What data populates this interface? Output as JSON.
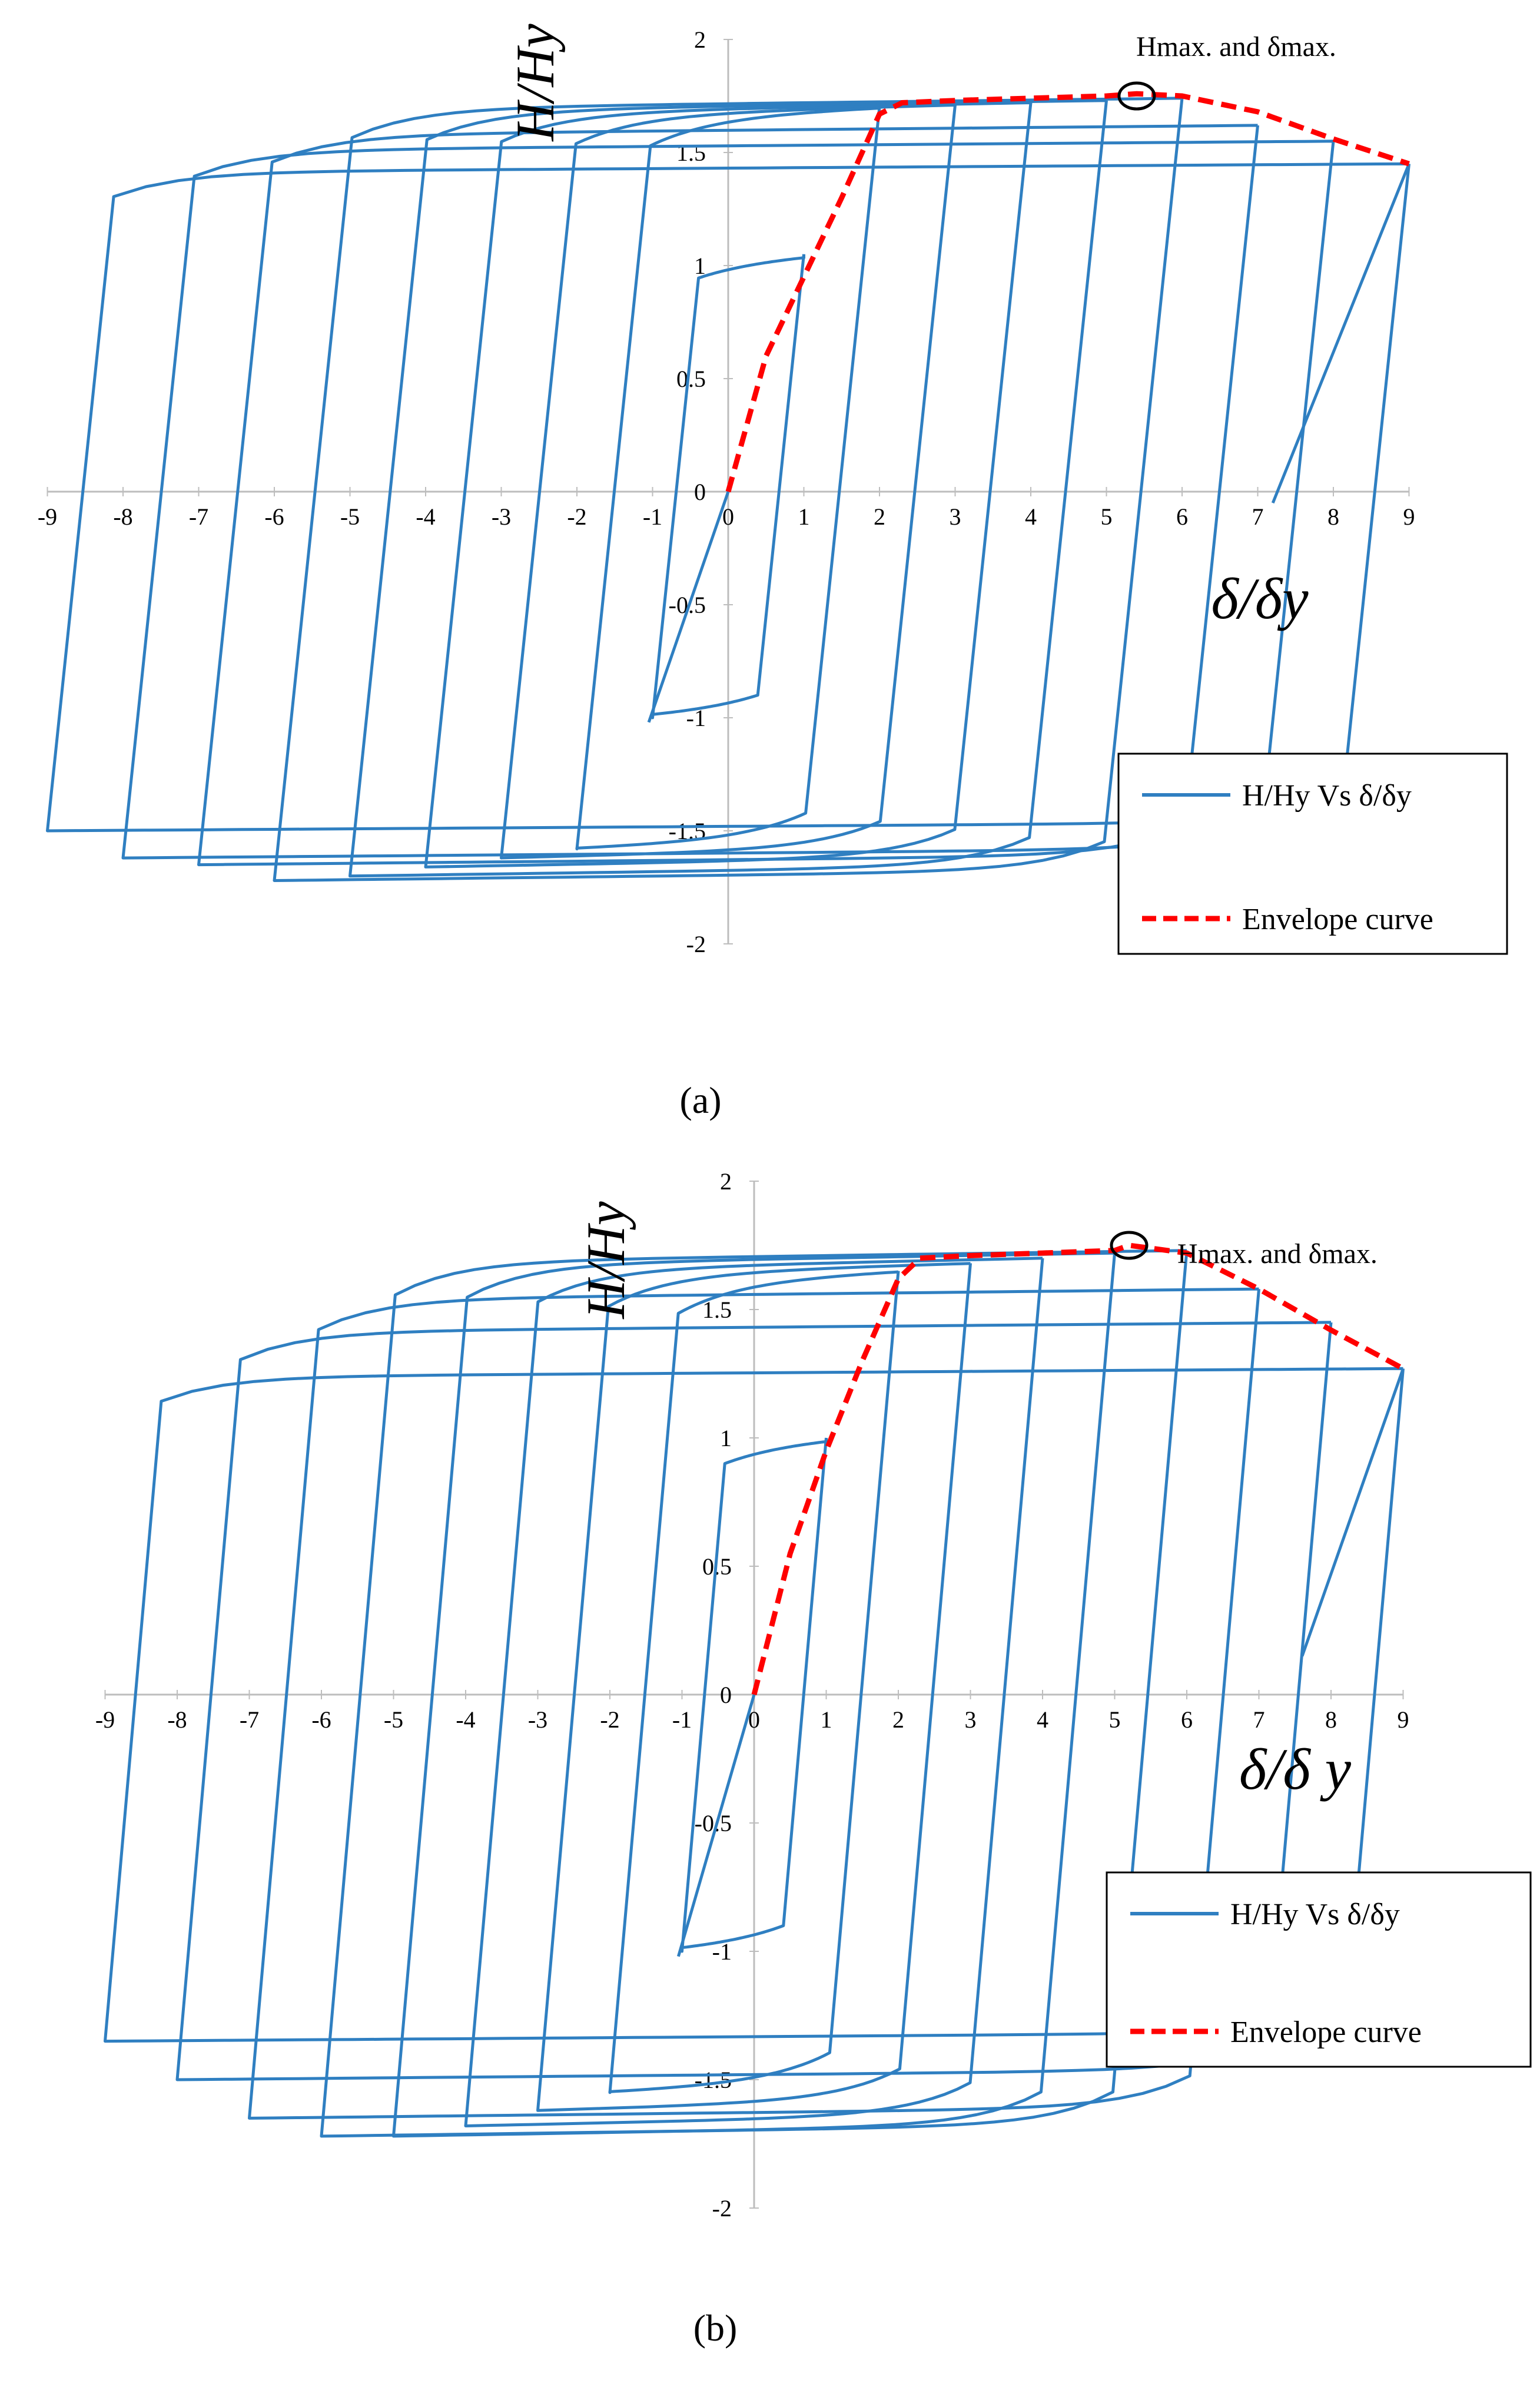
{
  "chart_data": [
    {
      "type": "line",
      "panel_label": "(a)",
      "xlim": [
        -9,
        9
      ],
      "ylim": [
        -2,
        2
      ],
      "x_ticks": [
        -9,
        -8,
        -7,
        -6,
        -5,
        -4,
        -3,
        -2,
        -1,
        0,
        1,
        2,
        3,
        4,
        5,
        6,
        7,
        8,
        9
      ],
      "y_ticks": [
        -2,
        -1.5,
        -1,
        -0.5,
        0,
        0.5,
        1,
        1.5,
        2
      ],
      "xlabel": "δ/δy",
      "ylabel": "H/Hy",
      "grid": false,
      "legend_position": "bottom-right",
      "legend": [
        {
          "label": "H/Hy  Vs δ/δy",
          "color": "#2f7fc1",
          "style": "solid"
        },
        {
          "label": "Envelope curve",
          "color": "#ff0000",
          "style": "dashed"
        }
      ],
      "annotation": {
        "text": "Hmax. and δmax.",
        "x": 5.4,
        "y": 1.75
      },
      "series": [
        {
          "name": "H/Hy  Vs δ/δy",
          "color": "#2f7fc1",
          "cycles": [
            {
              "dmax": 1,
              "hp": 1.05,
              "hn": -1.0
            },
            {
              "dmax": 2,
              "hp": 1.7,
              "hn": -1.58
            },
            {
              "dmax": 3,
              "hp": 1.71,
              "hn": -1.62
            },
            {
              "dmax": 4,
              "hp": 1.72,
              "hn": -1.66
            },
            {
              "dmax": 5,
              "hp": 1.73,
              "hn": -1.7
            },
            {
              "dmax": 6,
              "hp": 1.74,
              "hn": -1.72
            },
            {
              "dmax": 7,
              "hp": 1.62,
              "hn": -1.65
            },
            {
              "dmax": 8,
              "hp": 1.55,
              "hn": -1.62
            },
            {
              "dmax": 9,
              "hp": 1.45,
              "hn": -1.5
            }
          ],
          "final_branch": {
            "x": [
              9.0,
              7.2
            ],
            "y": [
              1.45,
              -0.05
            ]
          }
        },
        {
          "name": "Envelope curve",
          "color": "#ff0000",
          "x": [
            0,
            0.5,
            1.0,
            1.5,
            2.0,
            2.3,
            3.0,
            4.0,
            5.0,
            5.4,
            6.0,
            7.0,
            8.0,
            9.0
          ],
          "y": [
            0,
            0.6,
            0.95,
            1.3,
            1.67,
            1.72,
            1.73,
            1.74,
            1.75,
            1.76,
            1.75,
            1.68,
            1.56,
            1.45
          ]
        }
      ]
    },
    {
      "type": "line",
      "panel_label": "(b)",
      "xlim": [
        -9,
        9
      ],
      "ylim": [
        -2,
        2
      ],
      "x_ticks": [
        -9,
        -8,
        -7,
        -6,
        -5,
        -4,
        -3,
        -2,
        -1,
        0,
        1,
        2,
        3,
        4,
        5,
        6,
        7,
        8,
        9
      ],
      "y_ticks": [
        -2,
        -1.5,
        -1,
        -0.5,
        0,
        0.5,
        1,
        1.5,
        2
      ],
      "xlabel": "δ/δ y",
      "ylabel": "H/Hy",
      "grid": false,
      "legend_position": "bottom-right",
      "legend": [
        {
          "label": "H/Hy  Vs δ/δy",
          "color": "#2f7fc1",
          "style": "solid"
        },
        {
          "label": "Envelope curve",
          "color": "#ff0000",
          "style": "dashed"
        }
      ],
      "annotation": {
        "text": "Hmax. and δmax.",
        "x": 5.2,
        "y": 1.75
      },
      "series": [
        {
          "name": "H/Hy  Vs δ/δy",
          "color": "#2f7fc1",
          "cycles": [
            {
              "dmax": 1,
              "hp": 1.0,
              "hn": -1.0
            },
            {
              "dmax": 2,
              "hp": 1.65,
              "hn": -1.55
            },
            {
              "dmax": 3,
              "hp": 1.68,
              "hn": -1.62
            },
            {
              "dmax": 4,
              "hp": 1.7,
              "hn": -1.68
            },
            {
              "dmax": 5,
              "hp": 1.72,
              "hn": -1.72
            },
            {
              "dmax": 6,
              "hp": 1.73,
              "hn": -1.72
            },
            {
              "dmax": 7,
              "hp": 1.58,
              "hn": -1.65
            },
            {
              "dmax": 8,
              "hp": 1.45,
              "hn": -1.5
            },
            {
              "dmax": 9,
              "hp": 1.27,
              "hn": -1.35
            }
          ],
          "final_branch": {
            "x": [
              9.0,
              7.6
            ],
            "y": [
              1.27,
              0.15
            ]
          }
        },
        {
          "name": "Envelope curve",
          "color": "#ff0000",
          "x": [
            0,
            0.5,
            1.0,
            1.5,
            2.0,
            2.3,
            3.0,
            4.0,
            5.0,
            5.2,
            6.0,
            7.0,
            8.0,
            9.0
          ],
          "y": [
            0,
            0.55,
            0.95,
            1.3,
            1.62,
            1.7,
            1.71,
            1.72,
            1.73,
            1.75,
            1.72,
            1.58,
            1.42,
            1.27
          ]
        }
      ]
    }
  ]
}
